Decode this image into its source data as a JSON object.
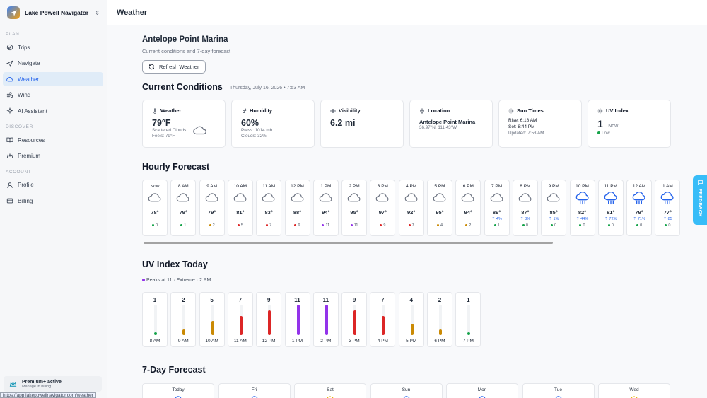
{
  "app": {
    "name": "Lake Powell Navigator"
  },
  "sidebar": {
    "sections": [
      {
        "label": "PLAN",
        "items": [
          {
            "label": "Trips",
            "icon": "compass-icon"
          },
          {
            "label": "Navigate",
            "icon": "navigation-icon"
          },
          {
            "label": "Weather",
            "icon": "cloud-icon",
            "active": true
          },
          {
            "label": "Wind",
            "icon": "wind-icon"
          },
          {
            "label": "AI Assistant",
            "icon": "sparkle-icon"
          }
        ]
      },
      {
        "label": "DISCOVER",
        "items": [
          {
            "label": "Resources",
            "icon": "book-icon"
          },
          {
            "label": "Premium",
            "icon": "crown-icon"
          }
        ]
      },
      {
        "label": "ACCOUNT",
        "items": [
          {
            "label": "Profile",
            "icon": "user-icon"
          },
          {
            "label": "Billing",
            "icon": "card-icon"
          }
        ]
      }
    ],
    "premium": {
      "title": "Premium+ active",
      "subtitle": "Manage in billing"
    }
  },
  "status_url": "https://app.lakepowellnavigator.com/weather",
  "topbar": {
    "title": "Weather"
  },
  "location": {
    "name": "Antelope Point Marina",
    "subtitle": "Current conditions and 7-day forecast"
  },
  "refresh_label": "Refresh Weather",
  "current": {
    "heading": "Current Conditions",
    "date": "Thursday, July 16, 2026 • 7:53 AM",
    "weather": {
      "title": "Weather",
      "temp": "79°F",
      "desc": "Scattered Clouds",
      "feels": "Feels: 79°F"
    },
    "humidity": {
      "title": "Humidity",
      "value": "60%",
      "pressure": "Press: 1014 mb",
      "clouds": "Clouds: 32%"
    },
    "visibility": {
      "title": "Visibility",
      "value": "6.2 mi"
    },
    "location": {
      "title": "Location",
      "name": "Antelope Point Marina",
      "coords": "36.97°N, 111.43°W"
    },
    "sun": {
      "title": "Sun Times",
      "rise": "Rise: 6:18 AM",
      "set": "Set: 8:44 PM",
      "updated": "Updated: 7:53 AM"
    },
    "uv": {
      "title": "UV Index",
      "value": "1",
      "now": "Now",
      "level": "Low"
    }
  },
  "hourly": {
    "heading": "Hourly Forecast",
    "items": [
      {
        "time": "Now",
        "temp": "78°",
        "precip": "",
        "uv": "0",
        "icon": "cloud"
      },
      {
        "time": "8 AM",
        "temp": "79°",
        "precip": "",
        "uv": "1",
        "icon": "cloud"
      },
      {
        "time": "9 AM",
        "temp": "79°",
        "precip": "",
        "uv": "2",
        "icon": "cloud"
      },
      {
        "time": "10 AM",
        "temp": "81°",
        "precip": "",
        "uv": "5",
        "icon": "cloud"
      },
      {
        "time": "11 AM",
        "temp": "83°",
        "precip": "",
        "uv": "7",
        "icon": "cloud"
      },
      {
        "time": "12 PM",
        "temp": "88°",
        "precip": "",
        "uv": "9",
        "icon": "cloud"
      },
      {
        "time": "1 PM",
        "temp": "94°",
        "precip": "",
        "uv": "11",
        "icon": "cloud"
      },
      {
        "time": "2 PM",
        "temp": "95°",
        "precip": "",
        "uv": "11",
        "icon": "cloud"
      },
      {
        "time": "3 PM",
        "temp": "97°",
        "precip": "",
        "uv": "9",
        "icon": "cloud"
      },
      {
        "time": "4 PM",
        "temp": "92°",
        "precip": "",
        "uv": "7",
        "icon": "cloud"
      },
      {
        "time": "5 PM",
        "temp": "95°",
        "precip": "",
        "uv": "4",
        "icon": "cloud"
      },
      {
        "time": "6 PM",
        "temp": "94°",
        "precip": "",
        "uv": "2",
        "icon": "cloud"
      },
      {
        "time": "7 PM",
        "temp": "89°",
        "precip": "4%",
        "uv": "1",
        "icon": "cloud"
      },
      {
        "time": "8 PM",
        "temp": "87°",
        "precip": "3%",
        "uv": "0",
        "icon": "cloud"
      },
      {
        "time": "9 PM",
        "temp": "85°",
        "precip": "1%",
        "uv": "0",
        "icon": "cloud"
      },
      {
        "time": "10 PM",
        "temp": "82°",
        "precip": "44%",
        "uv": "0",
        "icon": "rain"
      },
      {
        "time": "11 PM",
        "temp": "81°",
        "precip": "72%",
        "uv": "0",
        "icon": "rain"
      },
      {
        "time": "12 AM",
        "temp": "79°",
        "precip": "71%",
        "uv": "0",
        "icon": "rain"
      },
      {
        "time": "1 AM",
        "temp": "77°",
        "precip": "85",
        "uv": "0",
        "icon": "rain"
      }
    ]
  },
  "uv_today": {
    "heading": "UV Index Today",
    "peak": "Peaks at 11 · Extreme · 2 PM",
    "items": [
      {
        "time": "8 AM",
        "value": 1
      },
      {
        "time": "9 AM",
        "value": 2
      },
      {
        "time": "10 AM",
        "value": 5
      },
      {
        "time": "11 AM",
        "value": 7
      },
      {
        "time": "12 PM",
        "value": 9
      },
      {
        "time": "1 PM",
        "value": 11
      },
      {
        "time": "2 PM",
        "value": 11
      },
      {
        "time": "3 PM",
        "value": 9
      },
      {
        "time": "4 PM",
        "value": 7
      },
      {
        "time": "5 PM",
        "value": 4
      },
      {
        "time": "6 PM",
        "value": 2
      },
      {
        "time": "7 PM",
        "value": 1
      }
    ]
  },
  "daily": {
    "heading": "7-Day Forecast",
    "days": [
      {
        "label": "Today",
        "icon": "cloud"
      },
      {
        "label": "Fri",
        "icon": "cloud"
      },
      {
        "label": "Sat",
        "icon": "sun"
      },
      {
        "label": "Sun",
        "icon": "cloud"
      },
      {
        "label": "Mon",
        "icon": "cloud"
      },
      {
        "label": "Tue",
        "icon": "cloud"
      },
      {
        "label": "Wed",
        "icon": "sun"
      }
    ]
  },
  "feedback_label": "FEEDBACK",
  "colors": {
    "accent": "#2563eb",
    "uv_low": "#16a34a",
    "uv_moderate": "#ca8a04",
    "uv_high": "#ea580c",
    "uv_very_high": "#dc2626",
    "uv_extreme": "#9333ea"
  }
}
